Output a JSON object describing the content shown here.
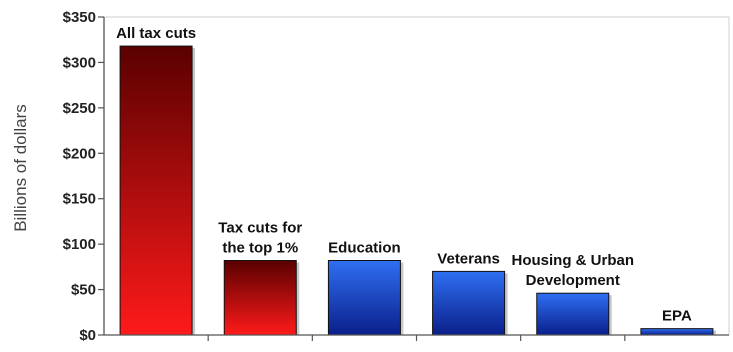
{
  "chart_data": {
    "type": "bar",
    "ylabel": "Billions of dollars",
    "ylim": [
      0,
      350
    ],
    "yticks": [
      0,
      50,
      100,
      150,
      200,
      250,
      300,
      350
    ],
    "ytick_labels": [
      "$0",
      "$50",
      "$100",
      "$150",
      "$200",
      "$250",
      "$300",
      "$350"
    ],
    "grid": false,
    "categories": [
      "All tax cuts",
      "Tax cuts for the top 1%",
      "Education",
      "Veterans",
      "Housing & Urban Development",
      "EPA"
    ],
    "values": [
      318,
      82,
      82,
      70,
      46,
      7
    ],
    "data_labels": [
      [
        "All tax cuts"
      ],
      [
        "Tax cuts for",
        "the top 1%"
      ],
      [
        "Education"
      ],
      [
        "Veterans"
      ],
      [
        "Housing & Urban",
        "Development"
      ],
      [
        "EPA"
      ]
    ],
    "colors": {
      "tax_bar_top": "#5a0000",
      "tax_bar_bottom": "#ff1a1a",
      "spending_bar_top": "#2f6ff2",
      "spending_bar_bottom": "#0a1f8a"
    },
    "bar_groups": [
      "tax",
      "tax",
      "spending",
      "spending",
      "spending",
      "spending"
    ]
  }
}
